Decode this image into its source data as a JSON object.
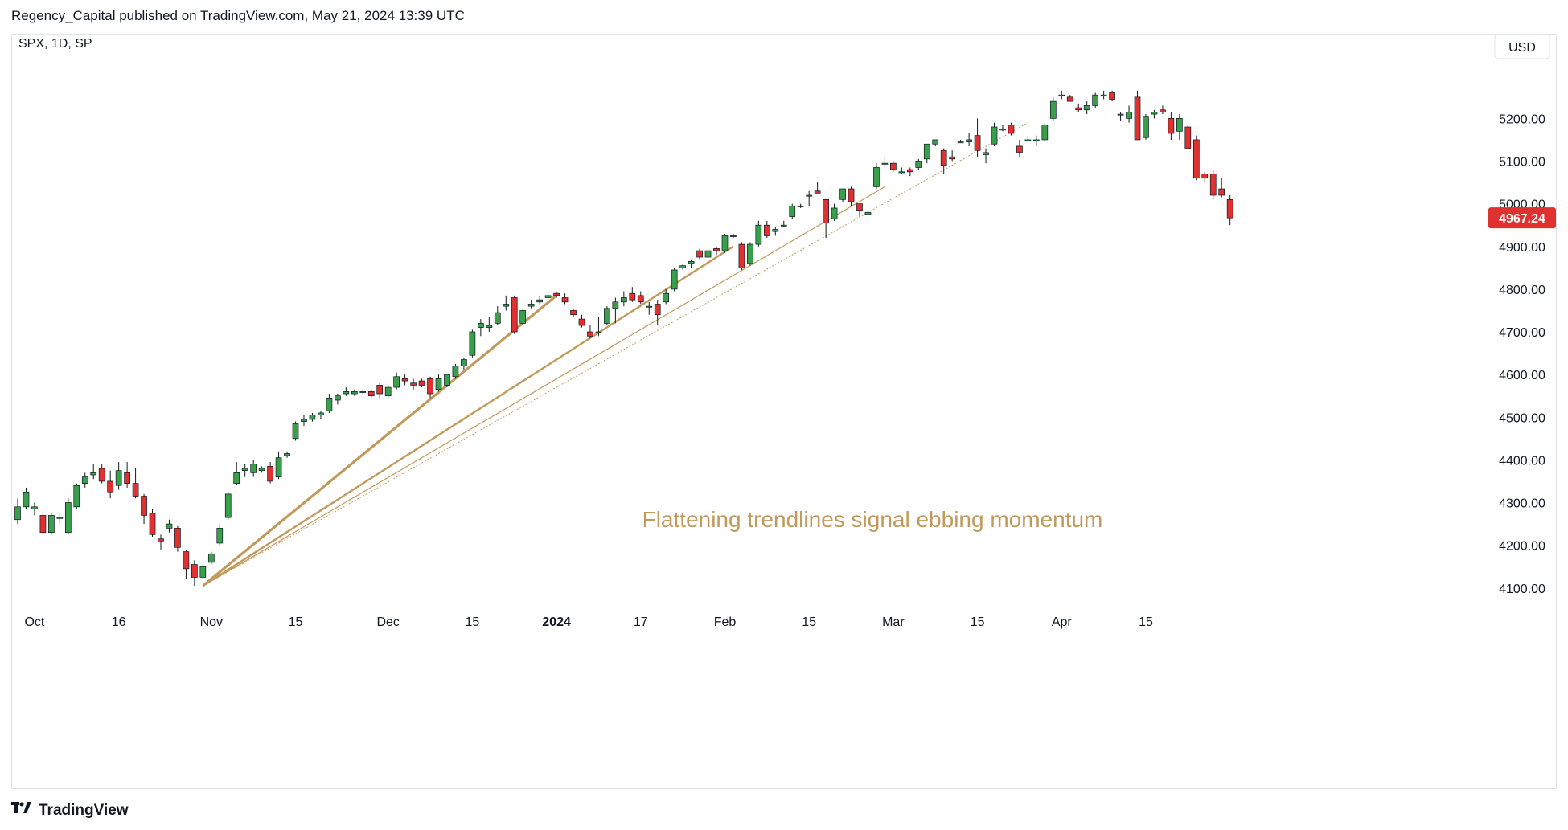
{
  "header": {
    "published": "Regency_Capital published on TradingView.com, May 21, 2024 13:39 UTC"
  },
  "symbol": {
    "label": "SPX, 1D, SP"
  },
  "currency": {
    "label": "USD"
  },
  "last_price": {
    "label": "4967.24",
    "color": "#e03131"
  },
  "annotation": {
    "text": "Flattening trendlines signal ebbing momentum",
    "color": "#c19a5b"
  },
  "footer": {
    "brand": "TradingView",
    "logo_icon": "tradingview-logo-icon"
  },
  "colors": {
    "up": "#38a04a",
    "down": "#e03131",
    "trendline": "#c19a5b",
    "border": "#e0e3eb"
  },
  "chart_data": {
    "type": "candlestick",
    "y_axis": {
      "min": 4060,
      "max": 5340,
      "ticks": [
        4100,
        4200,
        4300,
        4400,
        4500,
        4600,
        4700,
        4800,
        4900,
        5000,
        5100,
        5200
      ],
      "tick_labels": [
        "4100.00",
        "4200.00",
        "4300.00",
        "4400.00",
        "4500.00",
        "4600.00",
        "4700.00",
        "4800.00",
        "4900.00",
        "5000.00",
        "5100.00",
        "5200.00"
      ]
    },
    "x_axis_labels": [
      {
        "label": "Oct",
        "index": 2
      },
      {
        "label": "16",
        "index": 12
      },
      {
        "label": "Nov",
        "index": 23
      },
      {
        "label": "15",
        "index": 33
      },
      {
        "label": "Dec",
        "index": 44
      },
      {
        "label": "15",
        "index": 54
      },
      {
        "label": "2024",
        "index": 64,
        "bold": true
      },
      {
        "label": "17",
        "index": 74
      },
      {
        "label": "Feb",
        "index": 84
      },
      {
        "label": "15",
        "index": 94
      },
      {
        "label": "Mar",
        "index": 104
      },
      {
        "label": "15",
        "index": 114
      },
      {
        "label": "Apr",
        "index": 124
      },
      {
        "label": "15",
        "index": 134
      }
    ],
    "candles": [
      [
        4260,
        4310,
        4250,
        4290
      ],
      [
        4290,
        4335,
        4285,
        4325
      ],
      [
        4285,
        4300,
        4270,
        4290
      ],
      [
        4270,
        4280,
        4225,
        4230
      ],
      [
        4230,
        4275,
        4225,
        4270
      ],
      [
        4265,
        4275,
        4250,
        4265
      ],
      [
        4230,
        4310,
        4225,
        4300
      ],
      [
        4290,
        4345,
        4285,
        4340
      ],
      [
        4345,
        4370,
        4335,
        4360
      ],
      [
        4365,
        4390,
        4355,
        4370
      ],
      [
        4380,
        4390,
        4345,
        4350
      ],
      [
        4350,
        4375,
        4310,
        4325
      ],
      [
        4340,
        4395,
        4330,
        4375
      ],
      [
        4370,
        4395,
        4335,
        4345
      ],
      [
        4345,
        4380,
        4310,
        4315
      ],
      [
        4315,
        4320,
        4250,
        4270
      ],
      [
        4275,
        4285,
        4220,
        4225
      ],
      [
        4215,
        4225,
        4190,
        4210
      ],
      [
        4240,
        4260,
        4230,
        4250
      ],
      [
        4240,
        4245,
        4185,
        4195
      ],
      [
        4185,
        4190,
        4120,
        4145
      ],
      [
        4155,
        4165,
        4105,
        4125
      ],
      [
        4125,
        4155,
        4120,
        4150
      ],
      [
        4160,
        4185,
        4155,
        4180
      ],
      [
        4205,
        4250,
        4200,
        4240
      ],
      [
        4265,
        4325,
        4260,
        4320
      ],
      [
        4345,
        4395,
        4340,
        4370
      ],
      [
        4375,
        4390,
        4360,
        4380
      ],
      [
        4370,
        4400,
        4360,
        4390
      ],
      [
        4375,
        4385,
        4370,
        4380
      ],
      [
        4385,
        4395,
        4345,
        4350
      ],
      [
        4360,
        4420,
        4355,
        4405
      ],
      [
        4410,
        4420,
        4405,
        4415
      ],
      [
        4450,
        4490,
        4445,
        4485
      ],
      [
        4490,
        4505,
        4480,
        4495
      ],
      [
        4495,
        4510,
        4490,
        4505
      ],
      [
        4505,
        4515,
        4495,
        4510
      ],
      [
        4515,
        4555,
        4510,
        4545
      ],
      [
        4540,
        4555,
        4530,
        4550
      ],
      [
        4555,
        4570,
        4550,
        4560
      ],
      [
        4555,
        4565,
        4550,
        4560
      ],
      [
        4560,
        4565,
        4555,
        4560
      ],
      [
        4560,
        4565,
        4545,
        4550
      ],
      [
        4575,
        4580,
        4545,
        4555
      ],
      [
        4550,
        4575,
        4545,
        4570
      ],
      [
        4570,
        4605,
        4565,
        4595
      ],
      [
        4590,
        4600,
        4575,
        4585
      ],
      [
        4580,
        4590,
        4565,
        4575
      ],
      [
        4585,
        4590,
        4570,
        4575
      ],
      [
        4590,
        4595,
        4545,
        4555
      ],
      [
        4565,
        4600,
        4560,
        4590
      ],
      [
        4575,
        4600,
        4570,
        4600
      ],
      [
        4595,
        4625,
        4590,
        4620
      ],
      [
        4620,
        4640,
        4610,
        4635
      ],
      [
        4645,
        4705,
        4640,
        4700
      ],
      [
        4710,
        4730,
        4690,
        4720
      ],
      [
        4710,
        4735,
        4700,
        4715
      ],
      [
        4720,
        4760,
        4715,
        4745
      ],
      [
        4760,
        4785,
        4750,
        4765
      ],
      [
        4780,
        4785,
        4695,
        4700
      ],
      [
        4720,
        4755,
        4715,
        4750
      ],
      [
        4760,
        4775,
        4755,
        4765
      ],
      [
        4770,
        4785,
        4765,
        4775
      ],
      [
        4780,
        4790,
        4775,
        4785
      ],
      [
        4790,
        4795,
        4780,
        4785
      ],
      [
        4780,
        4790,
        4765,
        4770
      ],
      [
        4750,
        4755,
        4735,
        4740
      ],
      [
        4730,
        4740,
        4710,
        4715
      ],
      [
        4700,
        4715,
        4685,
        4690
      ],
      [
        4700,
        4735,
        4690,
        4700
      ],
      [
        4720,
        4760,
        4715,
        4755
      ],
      [
        4755,
        4780,
        4720,
        4770
      ],
      [
        4770,
        4795,
        4760,
        4780
      ],
      [
        4790,
        4805,
        4770,
        4775
      ],
      [
        4785,
        4795,
        4765,
        4770
      ],
      [
        4760,
        4770,
        4740,
        4760
      ],
      [
        4765,
        4775,
        4715,
        4740
      ],
      [
        4770,
        4800,
        4765,
        4790
      ],
      [
        4800,
        4850,
        4795,
        4845
      ],
      [
        4850,
        4860,
        4845,
        4855
      ],
      [
        4860,
        4870,
        4850,
        4865
      ],
      [
        4890,
        4895,
        4870,
        4875
      ],
      [
        4875,
        4890,
        4870,
        4890
      ],
      [
        4895,
        4900,
        4880,
        4890
      ],
      [
        4890,
        4930,
        4885,
        4925
      ],
      [
        4925,
        4930,
        4920,
        4925
      ],
      [
        4905,
        4910,
        4845,
        4850
      ],
      [
        4860,
        4910,
        4855,
        4905
      ],
      [
        4905,
        4960,
        4900,
        4950
      ],
      [
        4950,
        4960,
        4920,
        4925
      ],
      [
        4935,
        4945,
        4925,
        4940
      ],
      [
        4950,
        4960,
        4945,
        4950
      ],
      [
        4970,
        5000,
        4965,
        4995
      ],
      [
        4995,
        5000,
        4990,
        4995
      ],
      [
        5020,
        5030,
        4995,
        5020
      ],
      [
        5030,
        5050,
        5025,
        5025
      ],
      [
        5010,
        5010,
        4920,
        4955
      ],
      [
        4965,
        5000,
        4960,
        4990
      ],
      [
        5010,
        5030,
        5005,
        5035
      ],
      [
        5035,
        5040,
        4995,
        5005
      ],
      [
        5000,
        5000,
        4970,
        4985
      ],
      [
        4975,
        5000,
        4950,
        4980
      ],
      [
        5040,
        5095,
        5035,
        5085
      ],
      [
        5095,
        5110,
        5085,
        5095
      ],
      [
        5095,
        5100,
        5075,
        5080
      ],
      [
        5075,
        5085,
        5070,
        5075
      ],
      [
        5080,
        5085,
        5065,
        5075
      ],
      [
        5085,
        5105,
        5080,
        5100
      ],
      [
        5105,
        5140,
        5095,
        5140
      ],
      [
        5140,
        5150,
        5135,
        5150
      ],
      [
        5125,
        5130,
        5070,
        5090
      ],
      [
        5110,
        5125,
        5100,
        5105
      ],
      [
        5145,
        5150,
        5145,
        5145
      ],
      [
        5145,
        5165,
        5135,
        5150
      ],
      [
        5160,
        5200,
        5110,
        5125
      ],
      [
        5115,
        5130,
        5095,
        5120
      ],
      [
        5140,
        5190,
        5135,
        5180
      ],
      [
        5175,
        5185,
        5170,
        5175
      ],
      [
        5185,
        5190,
        5160,
        5165
      ],
      [
        5135,
        5150,
        5110,
        5120
      ],
      [
        5150,
        5160,
        5145,
        5150
      ],
      [
        5150,
        5160,
        5135,
        5150
      ],
      [
        5150,
        5190,
        5145,
        5185
      ],
      [
        5200,
        5250,
        5195,
        5240
      ],
      [
        5255,
        5265,
        5245,
        5255
      ],
      [
        5250,
        5255,
        5240,
        5240
      ],
      [
        5225,
        5235,
        5215,
        5220
      ],
      [
        5220,
        5240,
        5210,
        5230
      ],
      [
        5230,
        5260,
        5225,
        5255
      ],
      [
        5255,
        5265,
        5245,
        5255
      ],
      [
        5260,
        5265,
        5240,
        5245
      ],
      [
        5210,
        5215,
        5195,
        5210
      ],
      [
        5200,
        5230,
        5190,
        5215
      ],
      [
        5250,
        5265,
        5150,
        5150
      ],
      [
        5155,
        5210,
        5150,
        5205
      ],
      [
        5210,
        5220,
        5200,
        5215
      ],
      [
        5220,
        5230,
        5210,
        5215
      ],
      [
        5200,
        5215,
        5150,
        5165
      ],
      [
        5170,
        5210,
        5150,
        5200
      ],
      [
        5180,
        5185,
        5130,
        5130
      ],
      [
        5150,
        5160,
        5055,
        5060
      ],
      [
        5070,
        5075,
        5050,
        5060
      ],
      [
        5070,
        5080,
        5010,
        5020
      ],
      [
        5035,
        5060,
        5015,
        5020
      ],
      [
        5010,
        5020,
        4950,
        4967
      ]
    ],
    "trendlines": [
      {
        "from": [
          22,
          4105
        ],
        "to": [
          64,
          4785
        ],
        "weight": 3.2,
        "style": "solid"
      },
      {
        "from": [
          22,
          4105
        ],
        "to": [
          85,
          4900
        ],
        "weight": 2.4,
        "style": "solid"
      },
      {
        "from": [
          22,
          4105
        ],
        "to": [
          103,
          5040
        ],
        "weight": 1.2,
        "style": "solid"
      },
      {
        "from": [
          22,
          4105
        ],
        "to": [
          120,
          5190
        ],
        "weight": 1,
        "style": "dotted"
      }
    ]
  }
}
